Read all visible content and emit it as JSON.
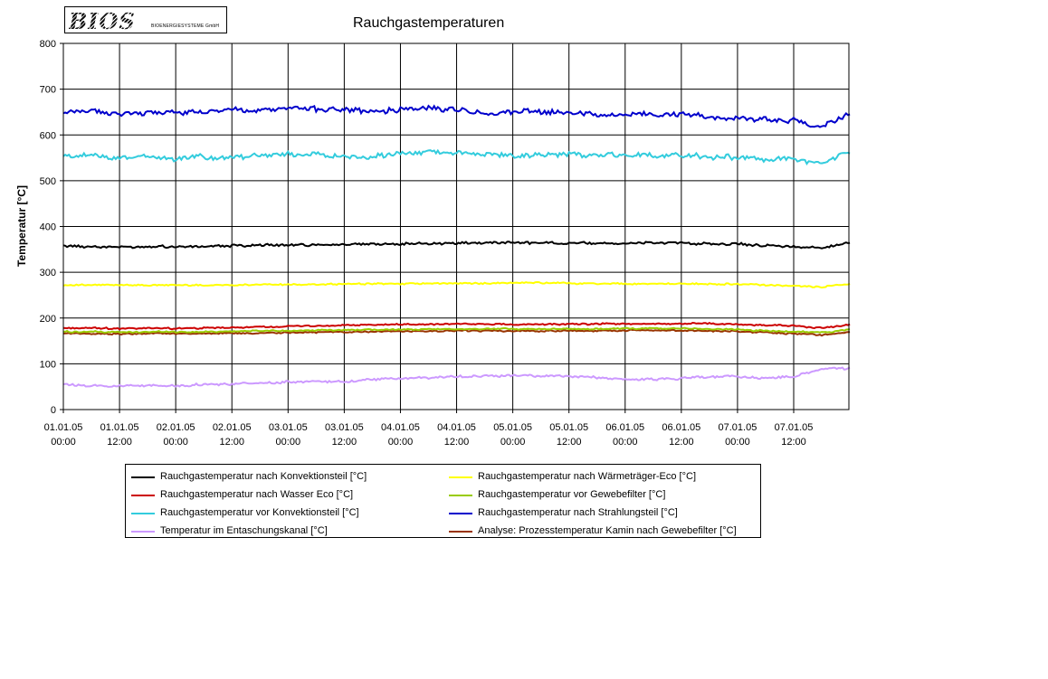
{
  "header": {
    "logo_text": "BIOS",
    "logo_subtext": "BIOENERGIESYSTEME GmbH",
    "title": "Rauchgastemperaturen"
  },
  "chart_data": {
    "type": "line",
    "title": "Rauchgastemperaturen",
    "ylabel": "Temperatur [°C]",
    "xlabel": "",
    "ylim": [
      0,
      800
    ],
    "yticks": [
      0,
      100,
      200,
      300,
      400,
      500,
      600,
      700,
      800
    ],
    "xtick_labels": [
      [
        "01.01.05",
        "00:00"
      ],
      [
        "01.01.05",
        "12:00"
      ],
      [
        "02.01.05",
        "00:00"
      ],
      [
        "02.01.05",
        "12:00"
      ],
      [
        "03.01.05",
        "00:00"
      ],
      [
        "03.01.05",
        "12:00"
      ],
      [
        "04.01.05",
        "00:00"
      ],
      [
        "04.01.05",
        "12:00"
      ],
      [
        "05.01.05",
        "00:00"
      ],
      [
        "05.01.05",
        "12:00"
      ],
      [
        "06.01.05",
        "00:00"
      ],
      [
        "06.01.05",
        "12:00"
      ],
      [
        "07.01.05",
        "00:00"
      ],
      [
        "07.01.05",
        "12:00"
      ]
    ],
    "x_unit": "hours since 01.01.05 00:00",
    "x": [
      0,
      6,
      12,
      18,
      24,
      30,
      36,
      42,
      48,
      54,
      60,
      66,
      72,
      78,
      84,
      90,
      96,
      102,
      108,
      114,
      120,
      126,
      132,
      138,
      144,
      150,
      156,
      162,
      168
    ],
    "grid": true,
    "legend_position": "bottom",
    "series": [
      {
        "name": "Rauchgastemperatur nach Konvektionsteil [°C]",
        "color": "#000000",
        "values": [
          358,
          356,
          355,
          357,
          356,
          357,
          358,
          359,
          359,
          360,
          361,
          362,
          362,
          363,
          364,
          365,
          365,
          364,
          364,
          363,
          363,
          364,
          364,
          362,
          362,
          358,
          356,
          352,
          365
        ]
      },
      {
        "name": "Rauchgastemperatur nach Wärmeträger-Eco [°C]",
        "color": "#ffff00",
        "values": [
          272,
          272,
          272,
          272,
          272,
          272,
          272,
          273,
          273,
          273,
          274,
          275,
          275,
          275,
          276,
          276,
          277,
          277,
          276,
          275,
          275,
          275,
          275,
          274,
          274,
          272,
          270,
          268,
          274
        ]
      },
      {
        "name": "Rauchgastemperatur nach Wasser Eco [°C]",
        "color": "#cc0000",
        "values": [
          178,
          178,
          177,
          178,
          177,
          178,
          179,
          180,
          182,
          183,
          184,
          185,
          186,
          186,
          187,
          187,
          186,
          186,
          187,
          187,
          187,
          187,
          188,
          188,
          186,
          184,
          183,
          178,
          186
        ]
      },
      {
        "name": "Rauchgastemperatur vor Gewebefilter [°C]",
        "color": "#99cc00",
        "values": [
          170,
          170,
          169,
          170,
          170,
          170,
          171,
          172,
          172,
          173,
          174,
          174,
          175,
          175,
          176,
          176,
          176,
          176,
          176,
          176,
          177,
          177,
          177,
          176,
          175,
          172,
          171,
          168,
          174
        ]
      },
      {
        "name": "Rauchgastemperatur vor Konvektionsteil [°C]",
        "color": "#33ccdd",
        "values": [
          552,
          555,
          550,
          553,
          548,
          552,
          551,
          556,
          558,
          557,
          553,
          552,
          560,
          563,
          560,
          557,
          556,
          555,
          557,
          554,
          556,
          555,
          556,
          552,
          551,
          548,
          546,
          535,
          562
        ]
      },
      {
        "name": "Rauchgastemperatur nach Strahlungsteil [°C]",
        "color": "#0000cc",
        "values": [
          648,
          652,
          645,
          650,
          648,
          652,
          655,
          654,
          658,
          657,
          655,
          650,
          656,
          658,
          655,
          648,
          650,
          652,
          648,
          645,
          644,
          645,
          646,
          640,
          636,
          634,
          632,
          618,
          650
        ]
      },
      {
        "name": "Temperatur im Entaschungskanal [°C]",
        "color": "#cc99ff",
        "values": [
          55,
          53,
          51,
          53,
          52,
          55,
          55,
          58,
          60,
          60,
          62,
          66,
          68,
          70,
          72,
          73,
          74,
          73,
          72,
          70,
          66,
          66,
          68,
          72,
          72,
          68,
          72,
          88,
          90
        ]
      },
      {
        "name": "Analyse: Prozesstemperatur Kamin nach Gewebefilter [°C]",
        "color": "#993300",
        "values": [
          166,
          166,
          165,
          166,
          166,
          166,
          167,
          167,
          168,
          169,
          170,
          170,
          171,
          171,
          172,
          172,
          172,
          172,
          172,
          172,
          173,
          173,
          173,
          172,
          171,
          168,
          166,
          163,
          170
        ]
      }
    ]
  }
}
